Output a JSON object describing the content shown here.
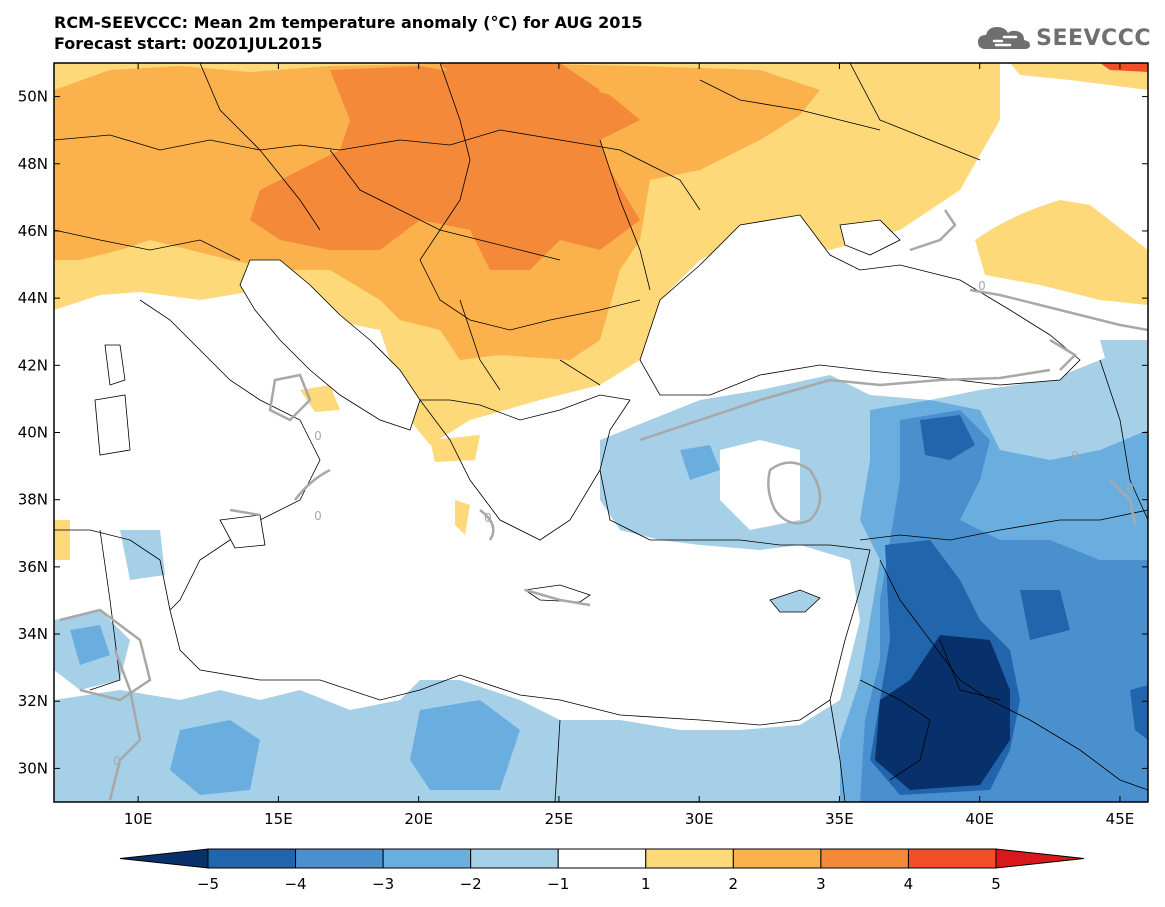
{
  "title": {
    "line1": "RCM-SEEVCCC: Mean 2m temperature anomaly (°C) for AUG 2015",
    "line2": "Forecast start: 00Z01JUL2015"
  },
  "logo": {
    "text": "SEEVCCC",
    "icon": "cloud-icon"
  },
  "map": {
    "lon_range": [
      7,
      46
    ],
    "lat_range": [
      29,
      51
    ],
    "lat_ticks": [
      {
        "value": 50,
        "label": "50N"
      },
      {
        "value": 48,
        "label": "48N"
      },
      {
        "value": 46,
        "label": "46N"
      },
      {
        "value": 44,
        "label": "44N"
      },
      {
        "value": 42,
        "label": "42N"
      },
      {
        "value": 40,
        "label": "40N"
      },
      {
        "value": 38,
        "label": "38N"
      },
      {
        "value": 36,
        "label": "36N"
      },
      {
        "value": 34,
        "label": "34N"
      },
      {
        "value": 32,
        "label": "32N"
      },
      {
        "value": 30,
        "label": "30N"
      }
    ],
    "lon_ticks": [
      {
        "value": 10,
        "label": "10E"
      },
      {
        "value": 15,
        "label": "15E"
      },
      {
        "value": 20,
        "label": "20E"
      },
      {
        "value": 25,
        "label": "25E"
      },
      {
        "value": 30,
        "label": "30E"
      },
      {
        "value": 35,
        "label": "35E"
      },
      {
        "value": 40,
        "label": "40E"
      },
      {
        "value": 45,
        "label": "45E"
      }
    ],
    "zero_contour_label": "0"
  },
  "colorbar": {
    "levels": [
      "−5",
      "−4",
      "−3",
      "−2",
      "−1",
      "1",
      "2",
      "3",
      "4",
      "5"
    ],
    "colors": [
      "#08306b",
      "#2166ac",
      "#4a90cf",
      "#6aaee0",
      "#a6cfe8",
      "#ffffff",
      "#fdd97a",
      "#fbb24c",
      "#f5893a",
      "#f04f28",
      "#d7191c"
    ]
  }
}
